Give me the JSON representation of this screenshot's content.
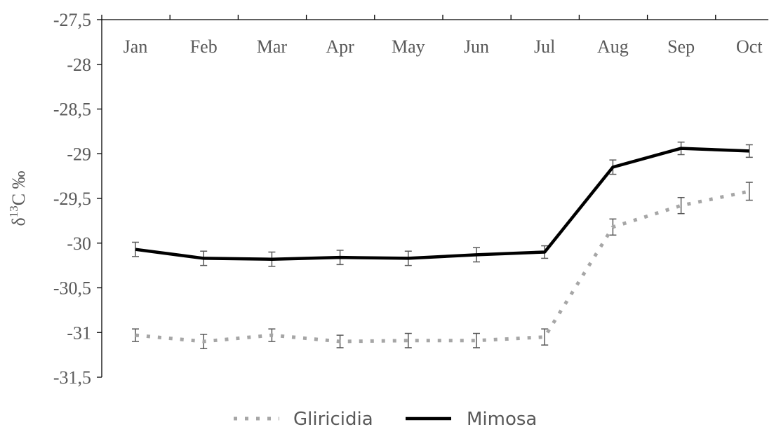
{
  "chart_data": {
    "type": "line",
    "categories": [
      "Jan",
      "Feb",
      "Mar",
      "Apr",
      "May",
      "Jun",
      "Jul",
      "Aug",
      "Sep",
      "Oct"
    ],
    "ylabel": "δ13C ‰",
    "ylim": [
      -31.5,
      -27.5
    ],
    "yticks": [
      -27.5,
      -28,
      -28.5,
      -29,
      -29.5,
      -30,
      -30.5,
      -31,
      -31.5
    ],
    "ytick_labels": [
      "-27,5",
      "-28",
      "-28,5",
      "-29",
      "-29,5",
      "-30",
      "-30,5",
      "-31",
      "-31,5"
    ],
    "x_axis_position": "top",
    "grid": false,
    "legend_position": "bottom-center",
    "series": [
      {
        "name": "Gliricidia",
        "style": "dotted",
        "color": "#a6a6a6",
        "values": [
          -31.03,
          -31.1,
          -31.03,
          -31.1,
          -31.09,
          -31.09,
          -31.05,
          -29.82,
          -29.58,
          -29.42
        ],
        "errors": [
          0.07,
          0.08,
          0.07,
          0.07,
          0.08,
          0.08,
          0.09,
          0.09,
          0.09,
          0.1
        ]
      },
      {
        "name": "Mimosa",
        "style": "solid",
        "color": "#000000",
        "values": [
          -30.07,
          -30.17,
          -30.18,
          -30.16,
          -30.17,
          -30.13,
          -30.1,
          -29.15,
          -28.94,
          -28.97
        ],
        "errors": [
          0.08,
          0.08,
          0.08,
          0.08,
          0.08,
          0.08,
          0.07,
          0.08,
          0.07,
          0.07
        ]
      }
    ]
  }
}
